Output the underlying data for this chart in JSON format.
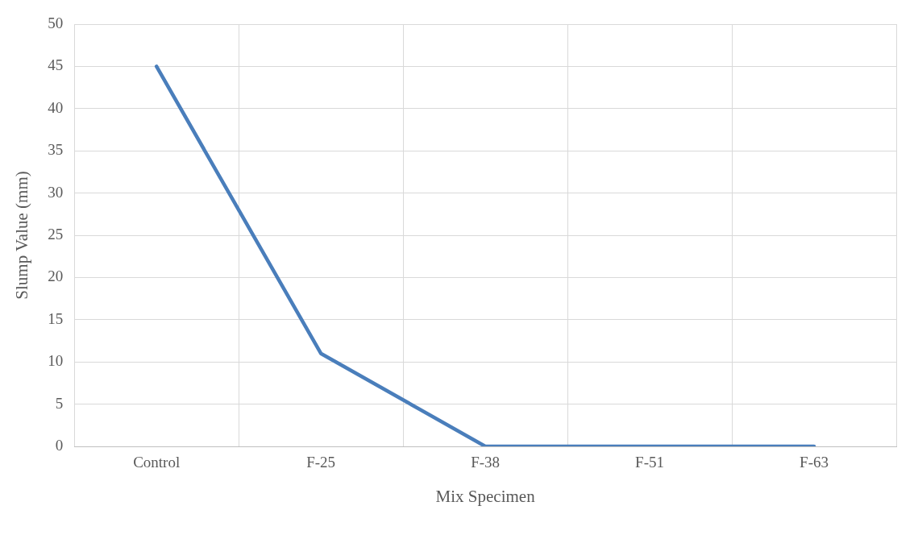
{
  "chart_data": {
    "type": "line",
    "xlabel": "Mix Specimen",
    "ylabel": "Slump Value (mm)",
    "categories": [
      "Control",
      "F-25",
      "F-38",
      "F-51",
      "F-63"
    ],
    "series": [
      {
        "color": "#4a7ebb",
        "values": [
          45,
          11,
          0,
          0,
          0
        ]
      }
    ],
    "ylim": [
      0,
      50
    ],
    "yticks": [
      0,
      5,
      10,
      15,
      20,
      25,
      30,
      35,
      40,
      45,
      50
    ],
    "grid": true,
    "legend": false,
    "marker": "none",
    "line_style": "solid"
  }
}
